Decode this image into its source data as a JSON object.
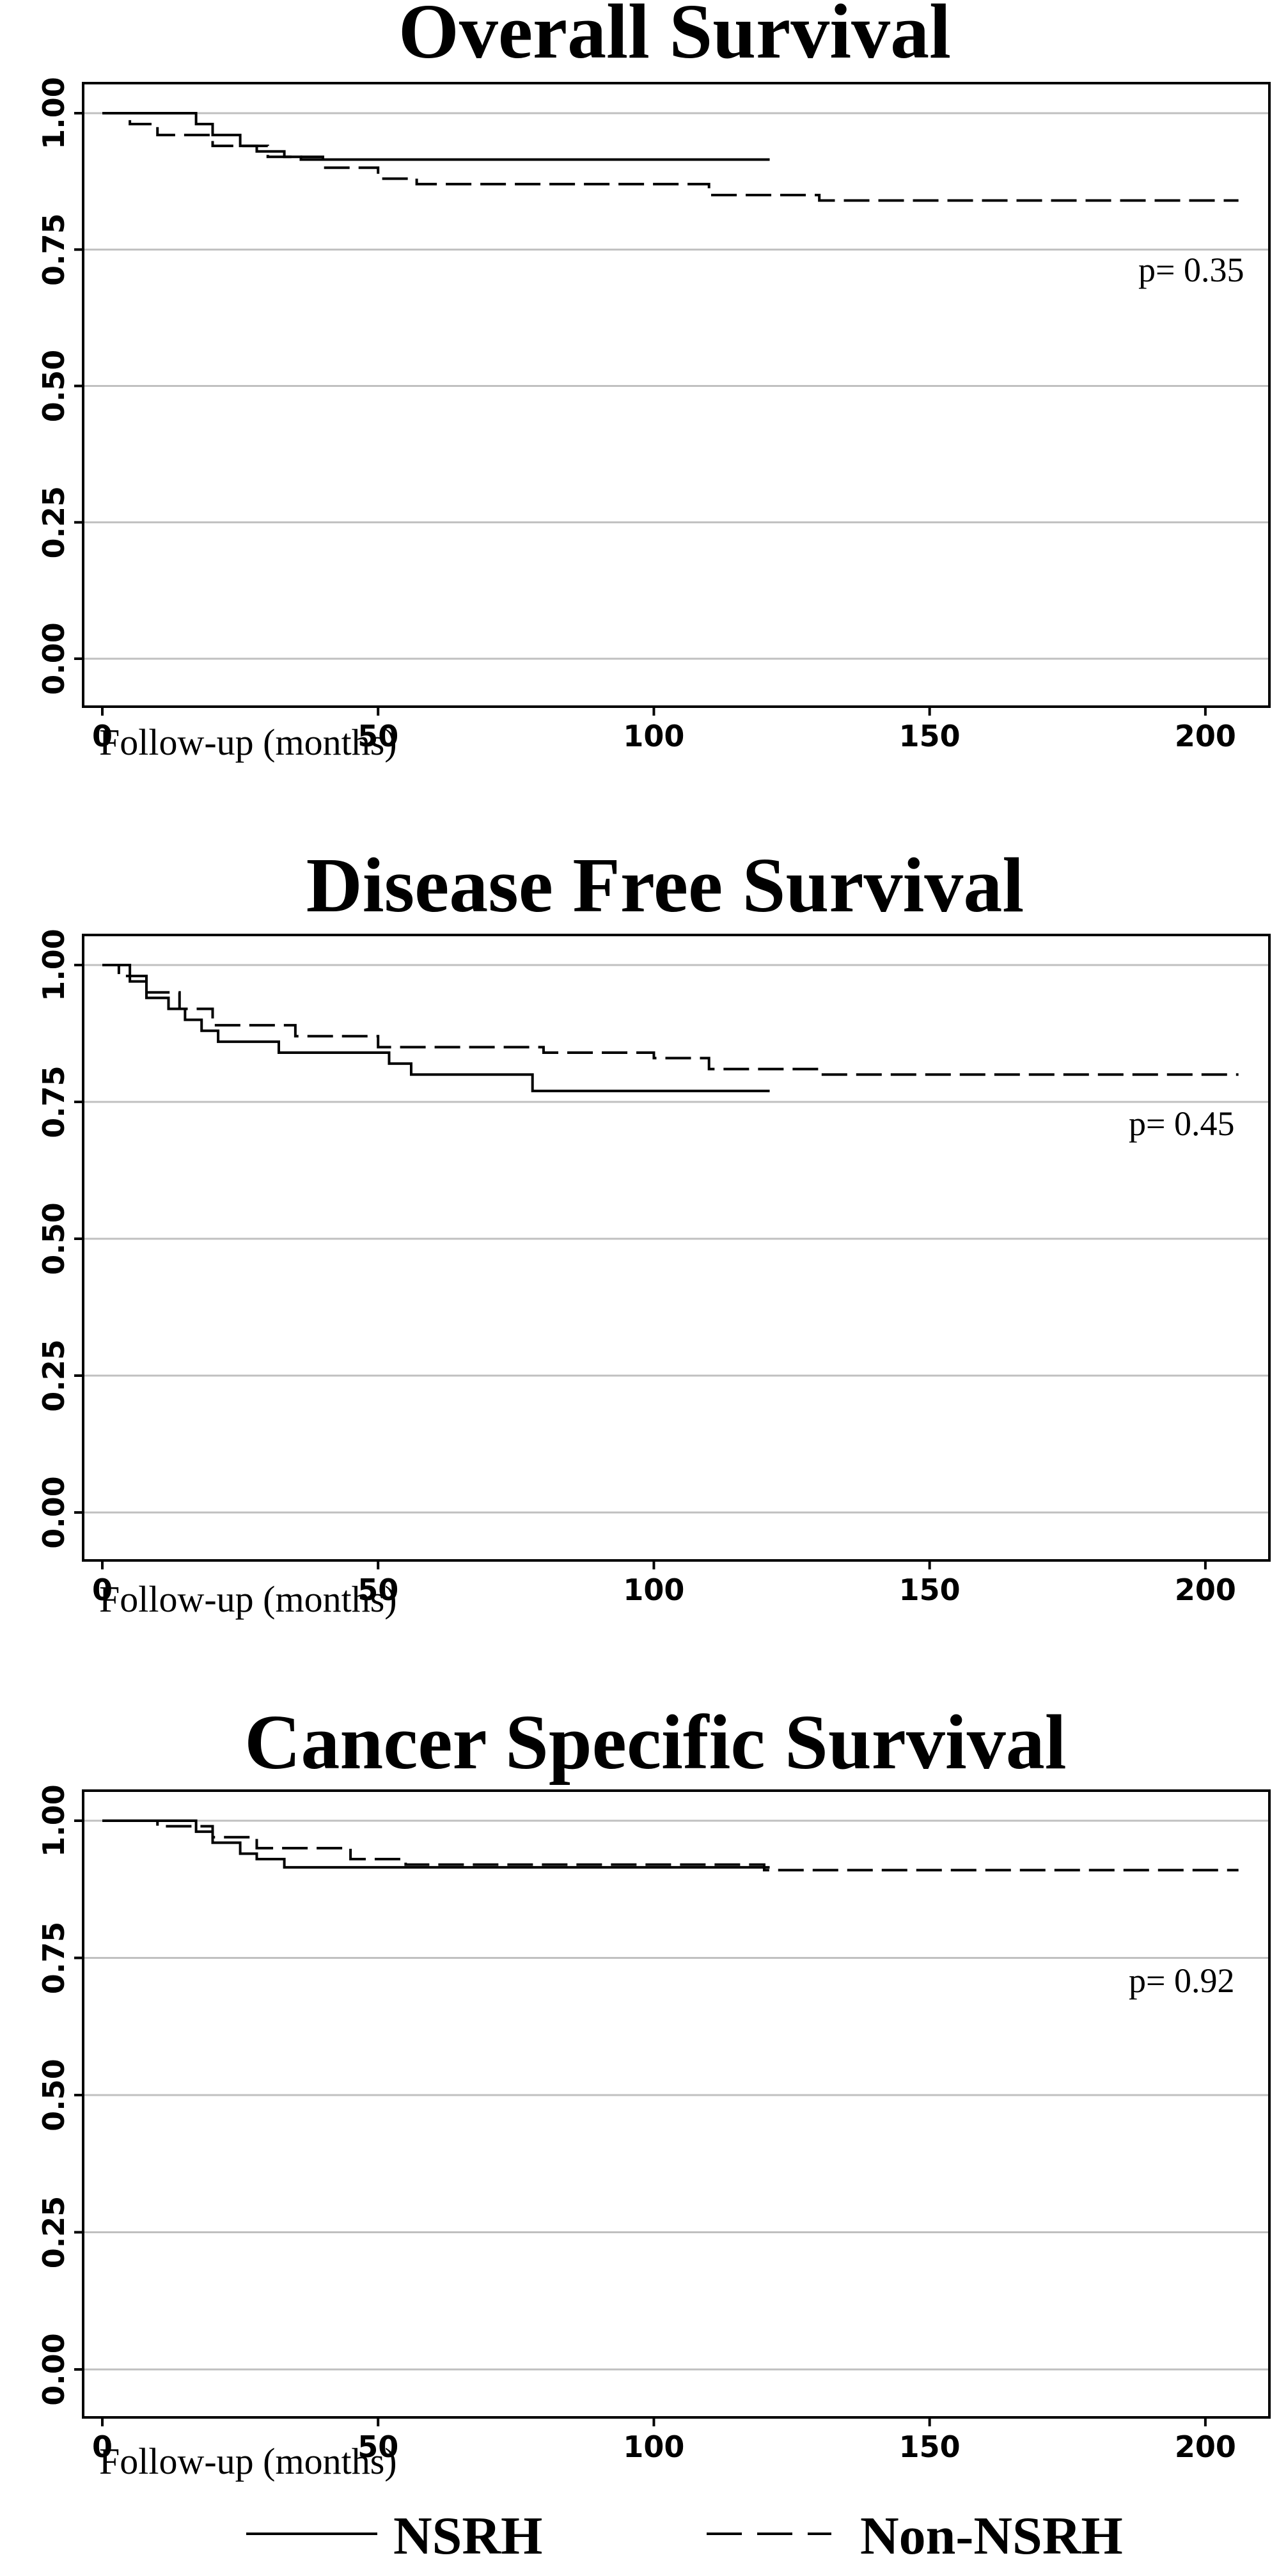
{
  "chart_data": [
    {
      "type": "line",
      "title": "Overall Survival",
      "xlabel": "Follow-up (months)",
      "ylabel": "",
      "xlim": [
        0,
        205
      ],
      "ylim": [
        0,
        1
      ],
      "xticks": [
        0,
        50,
        100,
        150,
        200
      ],
      "yticks": [
        "0.00",
        "0.25",
        "0.50",
        "0.75",
        "1.00"
      ],
      "grid": true,
      "annotation": "p= 0.35",
      "series": [
        {
          "name": "NSRH",
          "style": "solid",
          "x": [
            0,
            17,
            20,
            25,
            28,
            33,
            36,
            121
          ],
          "y": [
            1.0,
            0.98,
            0.96,
            0.94,
            0.93,
            0.92,
            0.915,
            0.915
          ]
        },
        {
          "name": "Non-NSRH",
          "style": "dashed",
          "x": [
            0,
            5,
            10,
            20,
            30,
            40,
            50,
            57,
            80,
            100,
            110,
            115,
            130,
            206
          ],
          "y": [
            1.0,
            0.98,
            0.96,
            0.94,
            0.92,
            0.9,
            0.88,
            0.87,
            0.87,
            0.87,
            0.85,
            0.85,
            0.84,
            0.84
          ]
        }
      ]
    },
    {
      "type": "line",
      "title": "Disease Free Survival",
      "xlabel": "Follow-up (months)",
      "ylabel": "",
      "xlim": [
        0,
        205
      ],
      "ylim": [
        0,
        1
      ],
      "xticks": [
        0,
        50,
        100,
        150,
        200
      ],
      "yticks": [
        "0.00",
        "0.25",
        "0.50",
        "0.75",
        "1.00"
      ],
      "grid": true,
      "annotation": "p= 0.45",
      "series": [
        {
          "name": "NSRH",
          "style": "solid",
          "x": [
            0,
            5,
            8,
            12,
            15,
            18,
            21,
            32,
            52,
            56,
            78,
            121
          ],
          "y": [
            1.0,
            0.97,
            0.94,
            0.92,
            0.9,
            0.88,
            0.86,
            0.84,
            0.82,
            0.8,
            0.77,
            0.77
          ]
        },
        {
          "name": "Non-NSRH",
          "style": "dashed",
          "x": [
            0,
            3,
            8,
            14,
            20,
            35,
            50,
            80,
            100,
            110,
            130,
            206
          ],
          "y": [
            1.0,
            0.98,
            0.95,
            0.92,
            0.89,
            0.87,
            0.85,
            0.84,
            0.83,
            0.81,
            0.8,
            0.8
          ]
        }
      ]
    },
    {
      "type": "line",
      "title": "Cancer Specific Survival",
      "xlabel": "Follow-up (months)",
      "ylabel": "",
      "xlim": [
        0,
        205
      ],
      "ylim": [
        0,
        1
      ],
      "xticks": [
        0,
        50,
        100,
        150,
        200
      ],
      "yticks": [
        "0.00",
        "0.25",
        "0.50",
        "0.75",
        "1.00"
      ],
      "grid": true,
      "annotation": "p= 0.92",
      "series": [
        {
          "name": "NSRH",
          "style": "solid",
          "x": [
            0,
            17,
            20,
            25,
            28,
            33,
            121
          ],
          "y": [
            1.0,
            0.98,
            0.96,
            0.94,
            0.93,
            0.915,
            0.915
          ]
        },
        {
          "name": "Non-NSRH",
          "style": "dashed",
          "x": [
            0,
            10,
            20,
            28,
            45,
            55,
            90,
            120,
            206
          ],
          "y": [
            1.0,
            0.99,
            0.97,
            0.95,
            0.93,
            0.92,
            0.92,
            0.91,
            0.91
          ]
        }
      ]
    }
  ],
  "legend": {
    "placement": "bottom",
    "items": [
      {
        "label": "NSRH",
        "style": "solid"
      },
      {
        "label": "Non-NSRH",
        "style": "dashed"
      }
    ]
  },
  "colors": {
    "line": "#000000",
    "grid": "#c0c0c0",
    "frame": "#000000"
  }
}
